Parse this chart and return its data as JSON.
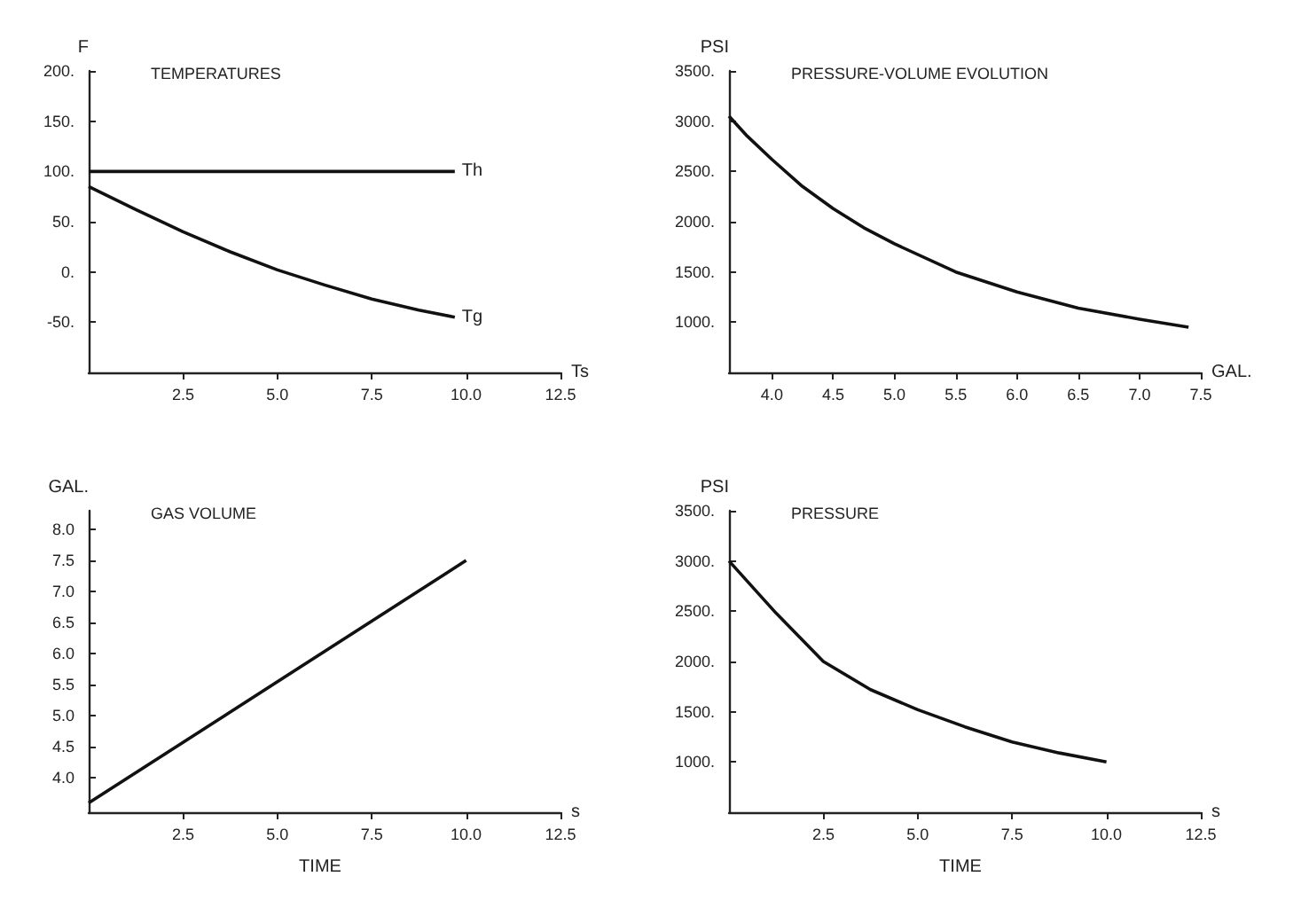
{
  "chart_data": [
    {
      "type": "line",
      "title": "TEMPERATURES",
      "ylabel": "F",
      "xlabel": "Ts",
      "xlim": [
        0,
        12.5
      ],
      "ylim": [
        -100,
        200
      ],
      "xticks": [
        2.5,
        {
          "value": 5,
          "label": "5.0"
        },
        7.5,
        {
          "value": 10,
          "label": "10.0"
        },
        12.5
      ],
      "yticks": [
        {
          "value": -50,
          "label": "-50."
        },
        {
          "value": 0,
          "label": "0."
        },
        {
          "value": 50,
          "label": "50."
        },
        {
          "value": 100,
          "label": "100."
        },
        {
          "value": 150,
          "label": "150."
        },
        {
          "value": 200,
          "label": "200."
        }
      ],
      "series": [
        {
          "name": "Th",
          "color": "#111111",
          "x": [
            0,
            9.7
          ],
          "values": [
            100,
            100
          ]
        },
        {
          "name": "Tg",
          "color": "#111111",
          "x": [
            0,
            1.25,
            2.5,
            3.75,
            5,
            6.25,
            7.5,
            8.75,
            9.7
          ],
          "values": [
            85,
            62,
            40,
            20,
            2,
            -13,
            -27,
            -38,
            -45
          ]
        }
      ]
    },
    {
      "type": "line",
      "title": "PRESSURE-VOLUME EVOLUTION",
      "ylabel": "PSI",
      "xlabel": "GAL.",
      "xlim": [
        3.65,
        7.5
      ],
      "ylim": [
        500,
        3500
      ],
      "xticks": [
        {
          "value": 4,
          "label": "4.0"
        },
        {
          "value": 4.5,
          "label": "4.5"
        },
        {
          "value": 5,
          "label": "5.0"
        },
        {
          "value": 5.5,
          "label": "5.5"
        },
        {
          "value": 6,
          "label": "6.0"
        },
        {
          "value": 6.5,
          "label": "6.5"
        },
        {
          "value": 7,
          "label": "7.0"
        },
        {
          "value": 7.5,
          "label": "7.5"
        }
      ],
      "yticks": [
        {
          "value": 1000,
          "label": "1000."
        },
        {
          "value": 1500,
          "label": "1500."
        },
        {
          "value": 2000,
          "label": "2000."
        },
        {
          "value": 2500,
          "label": "2500."
        },
        {
          "value": 3000,
          "label": "3000."
        },
        {
          "value": 3500,
          "label": "3500."
        }
      ],
      "series": [
        {
          "color": "#111111",
          "x": [
            3.65,
            3.8,
            4.0,
            4.25,
            4.5,
            4.75,
            5.0,
            5.5,
            6.0,
            6.5,
            7.0,
            7.4
          ],
          "values": [
            3050,
            2850,
            2620,
            2350,
            2130,
            1940,
            1780,
            1500,
            1300,
            1140,
            1030,
            950
          ]
        }
      ]
    },
    {
      "type": "line",
      "title": "GAS VOLUME",
      "ylabel": "GAL.",
      "xlabel": "s",
      "annotations": [
        "TIME"
      ],
      "xlim": [
        0,
        12.5
      ],
      "ylim": [
        3.45,
        8.3
      ],
      "xticks": [
        2.5,
        {
          "value": 5,
          "label": "5.0"
        },
        7.5,
        {
          "value": 10,
          "label": "10.0"
        },
        12.5
      ],
      "yticks": [
        {
          "value": 4,
          "label": "4.0"
        },
        {
          "value": 4.5,
          "label": "4.5"
        },
        {
          "value": 5,
          "label": "5.0"
        },
        {
          "value": 5.5,
          "label": "5.5"
        },
        {
          "value": 6,
          "label": "6.0"
        },
        {
          "value": 6.5,
          "label": "6.5"
        },
        {
          "value": 7,
          "label": "7.0"
        },
        {
          "value": 7.5,
          "label": "7.5"
        },
        {
          "value": 8,
          "label": "8.0"
        }
      ],
      "series": [
        {
          "color": "#111111",
          "x": [
            0,
            10
          ],
          "values": [
            3.6,
            7.5
          ]
        }
      ]
    },
    {
      "type": "line",
      "title": "PRESSURE",
      "ylabel": "PSI",
      "xlabel": "s",
      "annotations": [
        "TIME"
      ],
      "xlim": [
        0,
        12.5
      ],
      "ylim": [
        500,
        3500
      ],
      "xticks": [
        2.5,
        {
          "value": 5,
          "label": "5.0"
        },
        7.5,
        {
          "value": 10,
          "label": "10.0"
        },
        12.5
      ],
      "yticks": [
        {
          "value": 1000,
          "label": "1000."
        },
        {
          "value": 1500,
          "label": "1500."
        },
        {
          "value": 2000,
          "label": "2000."
        },
        {
          "value": 2500,
          "label": "2500."
        },
        {
          "value": 3000,
          "label": "3000."
        },
        {
          "value": 3500,
          "label": "3500."
        }
      ],
      "series": [
        {
          "color": "#111111",
          "x": [
            0,
            1.25,
            2.5,
            3.75,
            5,
            6.25,
            7.5,
            8.75,
            10
          ],
          "values": [
            3000,
            2480,
            2000,
            1720,
            1520,
            1350,
            1200,
            1090,
            1000
          ]
        }
      ]
    }
  ]
}
